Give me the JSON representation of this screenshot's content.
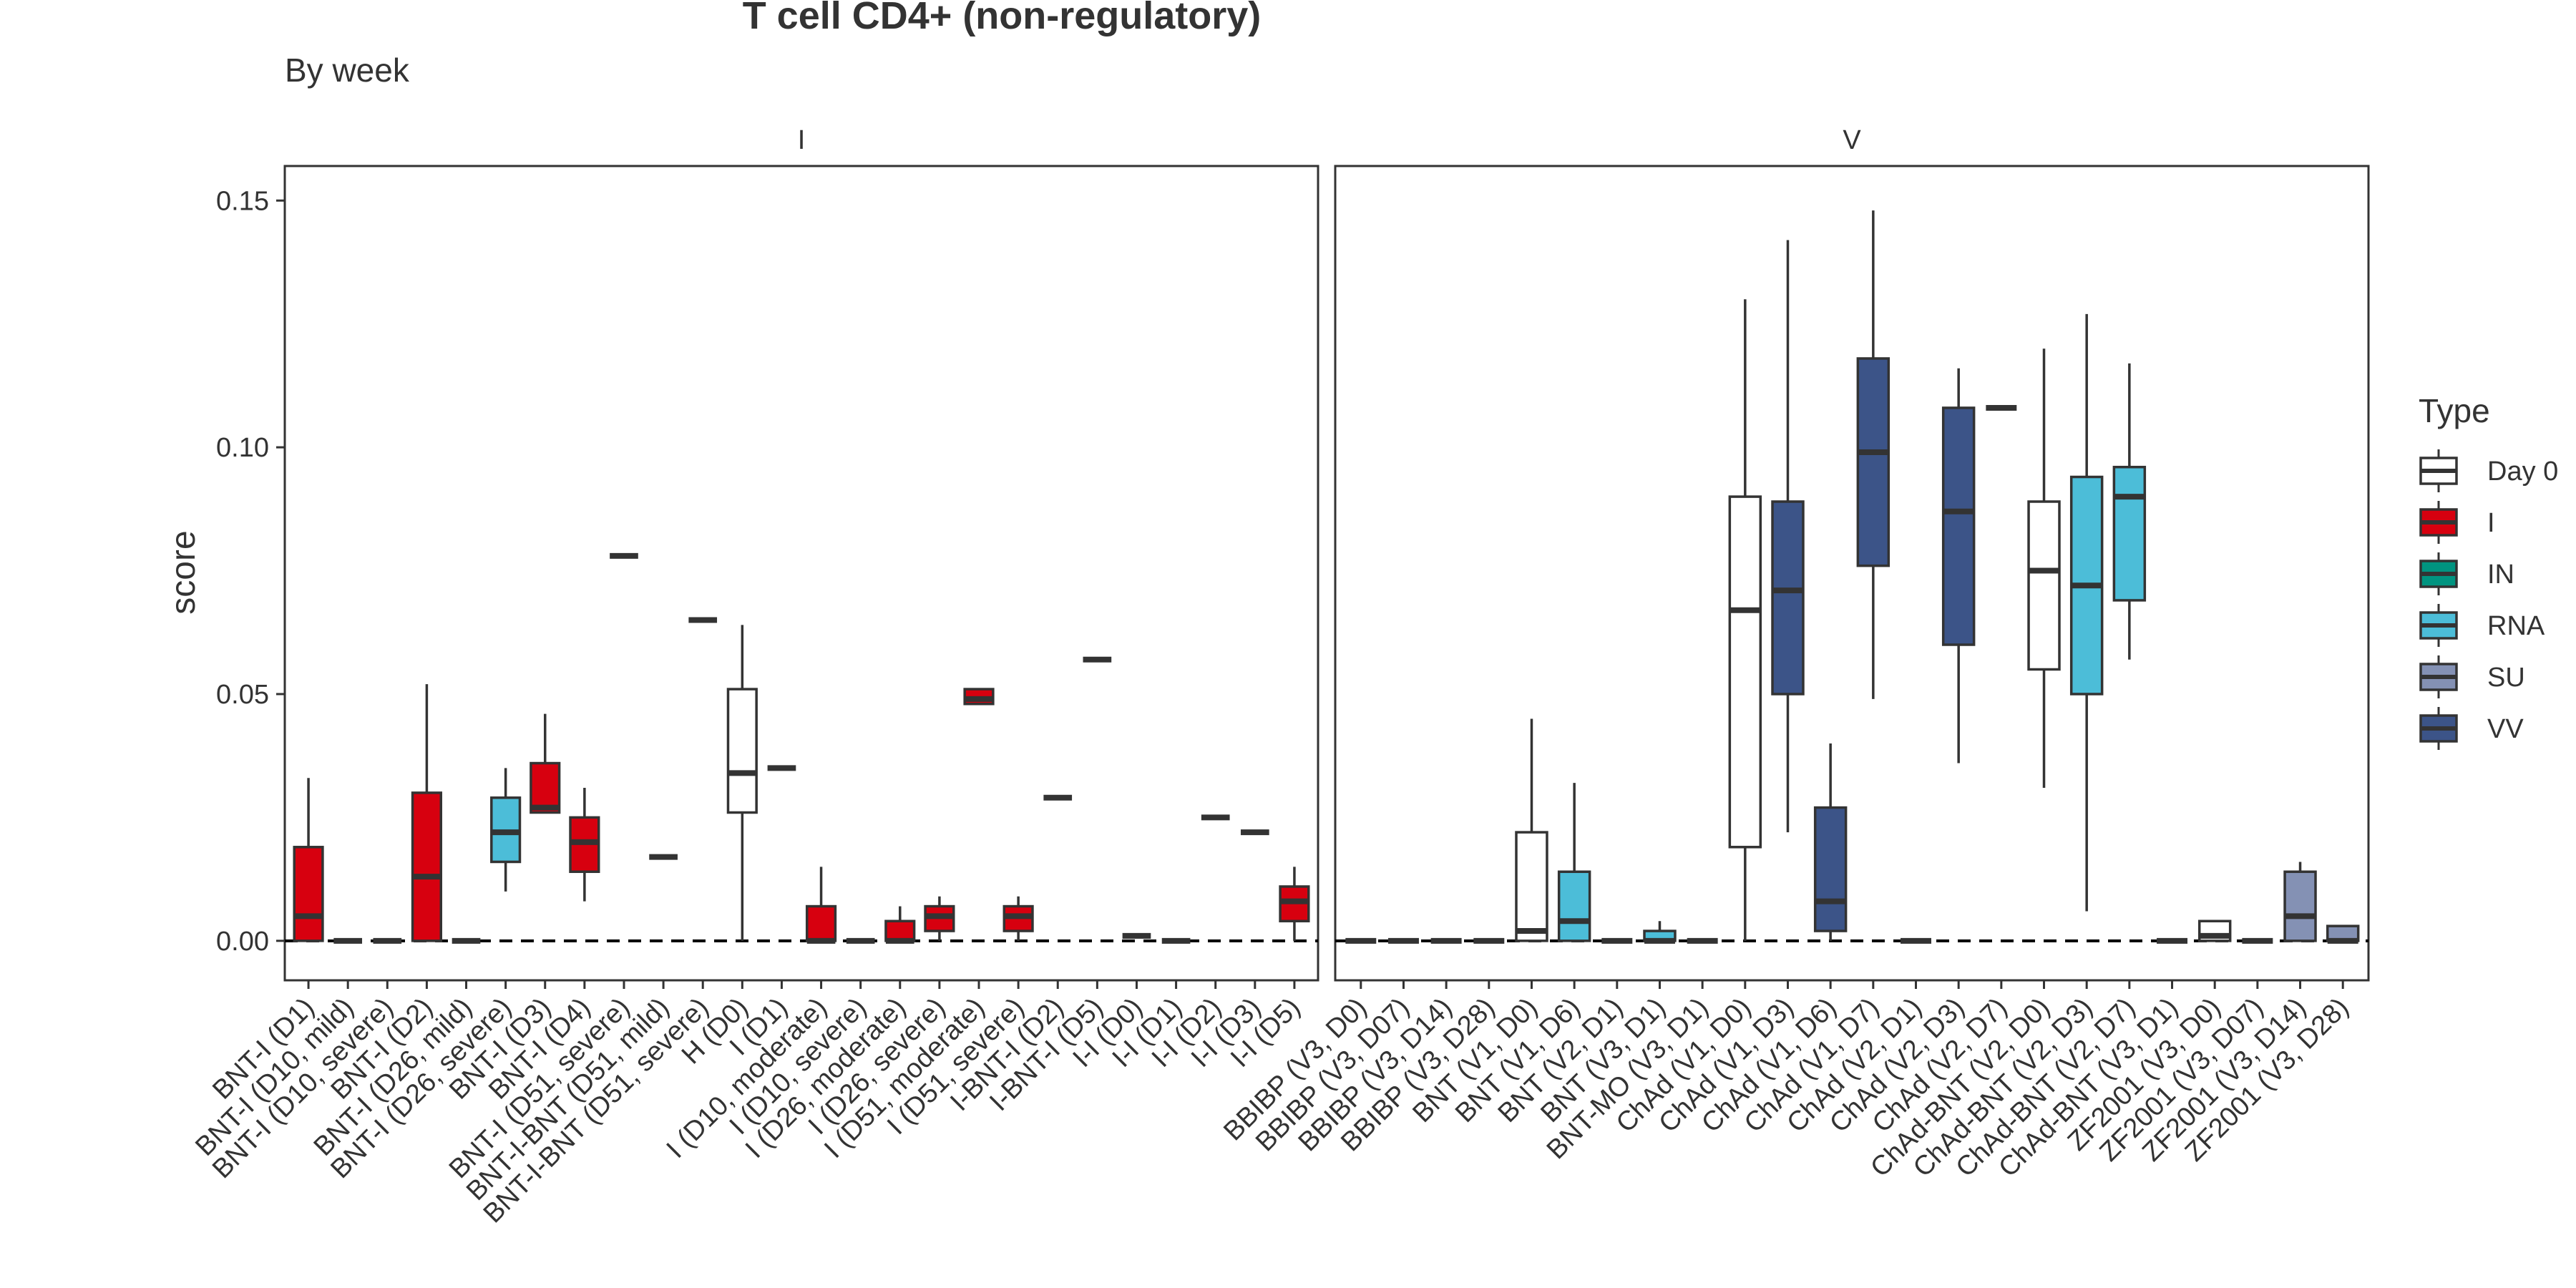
{
  "chart_data": {
    "type": "box",
    "title": "T cell CD4+ (non-regulatory)",
    "subtitle": "By week",
    "ylabel": "score",
    "xlabel": "",
    "ylim": [
      -0.008,
      0.157
    ],
    "yticks": [
      0.0,
      0.05,
      0.1,
      0.15
    ],
    "ytick_labels": [
      "0.00",
      "0.05",
      "0.10",
      "0.15"
    ],
    "reference_line": 0,
    "grid": false,
    "legend": {
      "title": "Type",
      "placement": "right",
      "entries": [
        {
          "label": "Day 0",
          "color": "#ffffff"
        },
        {
          "label": "I",
          "color": "#d7000f"
        },
        {
          "label": "IN",
          "color": "#009480"
        },
        {
          "label": "RNA",
          "color": "#4cbdd8"
        },
        {
          "label": "SU",
          "color": "#8491b4"
        },
        {
          "label": "VV",
          "color": "#3c5488"
        }
      ]
    },
    "panels": [
      {
        "label": "I",
        "categories": [
          {
            "name": "BNT-I (D1)",
            "type": "I",
            "q1": 0.0,
            "median": 0.005,
            "q3": 0.019,
            "lo": 0.0,
            "hi": 0.033
          },
          {
            "name": "BNT-I (D10, mild)",
            "type": "I",
            "q1": 0.0,
            "median": 0.0,
            "q3": 0.0,
            "lo": 0.0,
            "hi": 0.0
          },
          {
            "name": "BNT-I (D10, severe)",
            "type": "I",
            "q1": 0.0,
            "median": 0.0,
            "q3": 0.0,
            "lo": 0.0,
            "hi": 0.0
          },
          {
            "name": "BNT-I (D2)",
            "type": "I",
            "q1": 0.0,
            "median": 0.013,
            "q3": 0.03,
            "lo": 0.0,
            "hi": 0.052
          },
          {
            "name": "BNT-I (D26, mild)",
            "type": "I",
            "q1": 0.0,
            "median": 0.0,
            "q3": 0.0,
            "lo": 0.0,
            "hi": 0.0
          },
          {
            "name": "BNT-I (D26, severe)",
            "type": "RNA",
            "q1": 0.016,
            "median": 0.022,
            "q3": 0.029,
            "lo": 0.01,
            "hi": 0.035
          },
          {
            "name": "BNT-I (D3)",
            "type": "I",
            "q1": 0.026,
            "median": 0.027,
            "q3": 0.036,
            "lo": 0.026,
            "hi": 0.046
          },
          {
            "name": "BNT-I (D4)",
            "type": "I",
            "q1": 0.014,
            "median": 0.02,
            "q3": 0.025,
            "lo": 0.008,
            "hi": 0.031
          },
          {
            "name": "BNT-I (D51, severe)",
            "type": "I",
            "q1": 0.078,
            "median": 0.078,
            "q3": 0.078,
            "lo": 0.078,
            "hi": 0.078
          },
          {
            "name": "BNT-I-BNT (D51, mild)",
            "type": "I",
            "q1": 0.017,
            "median": 0.017,
            "q3": 0.017,
            "lo": 0.017,
            "hi": 0.017
          },
          {
            "name": "BNT-I-BNT (D51, severe)",
            "type": "I",
            "q1": 0.065,
            "median": 0.065,
            "q3": 0.065,
            "lo": 0.065,
            "hi": 0.065
          },
          {
            "name": "H (D0)",
            "type": "Day 0",
            "q1": 0.026,
            "median": 0.034,
            "q3": 0.051,
            "lo": 0.0,
            "hi": 0.064
          },
          {
            "name": "I (D1)",
            "type": "I",
            "q1": 0.035,
            "median": 0.035,
            "q3": 0.035,
            "lo": 0.035,
            "hi": 0.035
          },
          {
            "name": "I (D10, moderate)",
            "type": "I",
            "q1": 0.0,
            "median": 0.0,
            "q3": 0.007,
            "lo": 0.0,
            "hi": 0.015
          },
          {
            "name": "I (D10, severe)",
            "type": "I",
            "q1": 0.0,
            "median": 0.0,
            "q3": 0.0,
            "lo": 0.0,
            "hi": 0.0
          },
          {
            "name": "I (D26, moderate)",
            "type": "I",
            "q1": 0.0,
            "median": 0.0,
            "q3": 0.004,
            "lo": 0.0,
            "hi": 0.007
          },
          {
            "name": "I (D26, severe)",
            "type": "I",
            "q1": 0.002,
            "median": 0.005,
            "q3": 0.007,
            "lo": 0.0,
            "hi": 0.009
          },
          {
            "name": "I (D51, moderate)",
            "type": "I",
            "q1": 0.048,
            "median": 0.049,
            "q3": 0.051,
            "lo": 0.048,
            "hi": 0.051
          },
          {
            "name": "I (D51, severe)",
            "type": "I",
            "q1": 0.002,
            "median": 0.005,
            "q3": 0.007,
            "lo": 0.0,
            "hi": 0.009
          },
          {
            "name": "I-BNT-I (D2)",
            "type": "I",
            "q1": 0.029,
            "median": 0.029,
            "q3": 0.029,
            "lo": 0.029,
            "hi": 0.029
          },
          {
            "name": "I-BNT-I (D5)",
            "type": "I",
            "q1": 0.057,
            "median": 0.057,
            "q3": 0.057,
            "lo": 0.057,
            "hi": 0.057
          },
          {
            "name": "I-I (D0)",
            "type": "I",
            "q1": 0.001,
            "median": 0.001,
            "q3": 0.001,
            "lo": 0.001,
            "hi": 0.001
          },
          {
            "name": "I-I (D1)",
            "type": "I",
            "q1": 0.0,
            "median": 0.0,
            "q3": 0.0,
            "lo": 0.0,
            "hi": 0.0
          },
          {
            "name": "I-I (D2)",
            "type": "I",
            "q1": 0.025,
            "median": 0.025,
            "q3": 0.025,
            "lo": 0.025,
            "hi": 0.025
          },
          {
            "name": "I-I (D3)",
            "type": "I",
            "q1": 0.022,
            "median": 0.022,
            "q3": 0.022,
            "lo": 0.022,
            "hi": 0.022
          },
          {
            "name": "I-I (D5)",
            "type": "I",
            "q1": 0.004,
            "median": 0.008,
            "q3": 0.011,
            "lo": 0.0,
            "hi": 0.015
          }
        ]
      },
      {
        "label": "V",
        "categories": [
          {
            "name": "BBIBP (V3, D0)",
            "type": "SU",
            "q1": 0.0,
            "median": 0.0,
            "q3": 0.0,
            "lo": 0.0,
            "hi": 0.0
          },
          {
            "name": "BBIBP (V3, D07)",
            "type": "SU",
            "q1": 0.0,
            "median": 0.0,
            "q3": 0.0,
            "lo": 0.0,
            "hi": 0.0
          },
          {
            "name": "BBIBP (V3, D14)",
            "type": "SU",
            "q1": 0.0,
            "median": 0.0,
            "q3": 0.0,
            "lo": 0.0,
            "hi": 0.0
          },
          {
            "name": "BBIBP (V3, D28)",
            "type": "SU",
            "q1": 0.0,
            "median": 0.0,
            "q3": 0.0,
            "lo": 0.0,
            "hi": 0.0
          },
          {
            "name": "BNT (V1, D0)",
            "type": "Day 0",
            "q1": 0.0,
            "median": 0.002,
            "q3": 0.022,
            "lo": 0.0,
            "hi": 0.045
          },
          {
            "name": "BNT (V1, D6)",
            "type": "RNA",
            "q1": 0.0,
            "median": 0.004,
            "q3": 0.014,
            "lo": 0.0,
            "hi": 0.032
          },
          {
            "name": "BNT (V2, D1)",
            "type": "RNA",
            "q1": 0.0,
            "median": 0.0,
            "q3": 0.0,
            "lo": 0.0,
            "hi": 0.0
          },
          {
            "name": "BNT (V3, D1)",
            "type": "RNA",
            "q1": 0.0,
            "median": 0.0,
            "q3": 0.002,
            "lo": 0.0,
            "hi": 0.004
          },
          {
            "name": "BNT-MO (V3, D1)",
            "type": "RNA",
            "q1": 0.0,
            "median": 0.0,
            "q3": 0.0,
            "lo": 0.0,
            "hi": 0.0
          },
          {
            "name": "ChAd (V1, D0)",
            "type": "Day 0",
            "q1": 0.019,
            "median": 0.067,
            "q3": 0.09,
            "lo": 0.0,
            "hi": 0.13
          },
          {
            "name": "ChAd (V1, D3)",
            "type": "VV",
            "q1": 0.05,
            "median": 0.071,
            "q3": 0.089,
            "lo": 0.022,
            "hi": 0.142
          },
          {
            "name": "ChAd (V1, D6)",
            "type": "VV",
            "q1": 0.002,
            "median": 0.008,
            "q3": 0.027,
            "lo": 0.0,
            "hi": 0.04
          },
          {
            "name": "ChAd (V1, D7)",
            "type": "VV",
            "q1": 0.076,
            "median": 0.099,
            "q3": 0.118,
            "lo": 0.049,
            "hi": 0.148
          },
          {
            "name": "ChAd (V2, D1)",
            "type": "VV",
            "q1": 0.0,
            "median": 0.0,
            "q3": 0.0,
            "lo": 0.0,
            "hi": 0.0
          },
          {
            "name": "ChAd (V2, D3)",
            "type": "VV",
            "q1": 0.06,
            "median": 0.087,
            "q3": 0.108,
            "lo": 0.036,
            "hi": 0.116
          },
          {
            "name": "ChAd (V2, D7)",
            "type": "VV",
            "q1": 0.108,
            "median": 0.108,
            "q3": 0.108,
            "lo": 0.108,
            "hi": 0.108
          },
          {
            "name": "ChAd-BNT (V2, D0)",
            "type": "Day 0",
            "q1": 0.055,
            "median": 0.075,
            "q3": 0.089,
            "lo": 0.031,
            "hi": 0.12
          },
          {
            "name": "ChAd-BNT (V2, D3)",
            "type": "RNA",
            "q1": 0.05,
            "median": 0.072,
            "q3": 0.094,
            "lo": 0.006,
            "hi": 0.127
          },
          {
            "name": "ChAd-BNT (V2, D7)",
            "type": "RNA",
            "q1": 0.069,
            "median": 0.09,
            "q3": 0.096,
            "lo": 0.057,
            "hi": 0.117
          },
          {
            "name": "ChAd-BNT (V3, D1)",
            "type": "RNA",
            "q1": 0.0,
            "median": 0.0,
            "q3": 0.0,
            "lo": 0.0,
            "hi": 0.0
          },
          {
            "name": "ZF2001 (V3, D0)",
            "type": "Day 0",
            "q1": 0.0,
            "median": 0.001,
            "q3": 0.004,
            "lo": 0.0,
            "hi": 0.004
          },
          {
            "name": "ZF2001 (V3, D07)",
            "type": "SU",
            "q1": 0.0,
            "median": 0.0,
            "q3": 0.0,
            "lo": 0.0,
            "hi": 0.0
          },
          {
            "name": "ZF2001 (V3, D14)",
            "type": "SU",
            "q1": 0.0,
            "median": 0.005,
            "q3": 0.014,
            "lo": 0.0,
            "hi": 0.016
          },
          {
            "name": "ZF2001 (V3, D28)",
            "type": "SU",
            "q1": 0.0,
            "median": 0.0,
            "q3": 0.003,
            "lo": 0.0,
            "hi": 0.003
          }
        ]
      }
    ]
  }
}
